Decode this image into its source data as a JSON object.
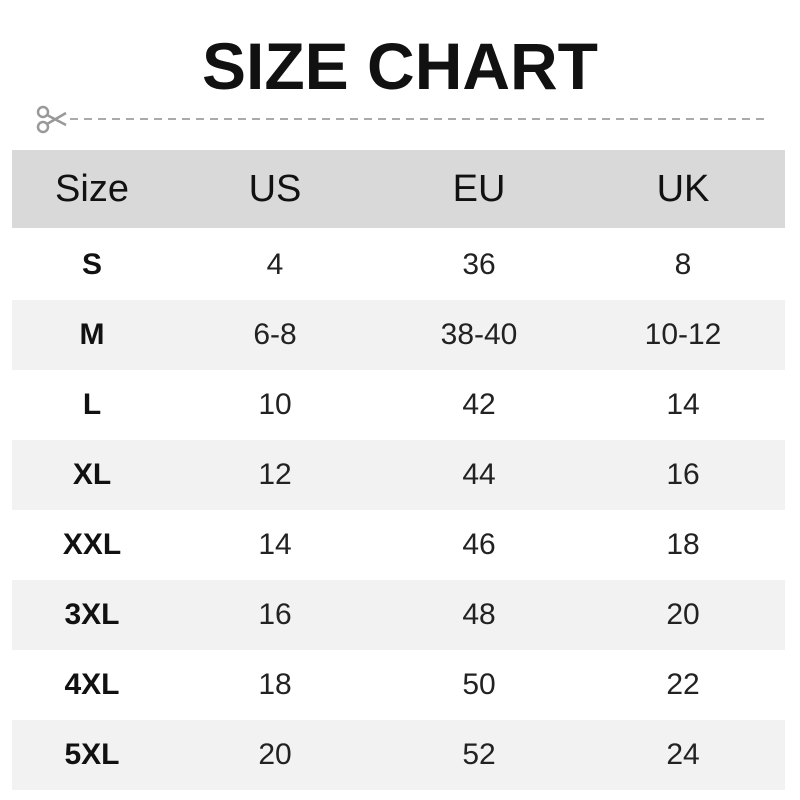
{
  "title": "SIZE CHART",
  "colors": {
    "header_bg": "#d9d9d9",
    "alt_row_bg": "#f2f2f2",
    "cut_line": "#999999"
  },
  "icons": {
    "cut": "scissors-icon"
  },
  "table": {
    "headers": [
      "Size",
      "US",
      "EU",
      "UK"
    ],
    "rows": [
      [
        "S",
        "4",
        "36",
        "8"
      ],
      [
        "M",
        "6-8",
        "38-40",
        "10-12"
      ],
      [
        "L",
        "10",
        "42",
        "14"
      ],
      [
        "XL",
        "12",
        "44",
        "16"
      ],
      [
        "XXL",
        "14",
        "46",
        "18"
      ],
      [
        "3XL",
        "16",
        "48",
        "20"
      ],
      [
        "4XL",
        "18",
        "50",
        "22"
      ],
      [
        "5XL",
        "20",
        "52",
        "24"
      ]
    ]
  }
}
